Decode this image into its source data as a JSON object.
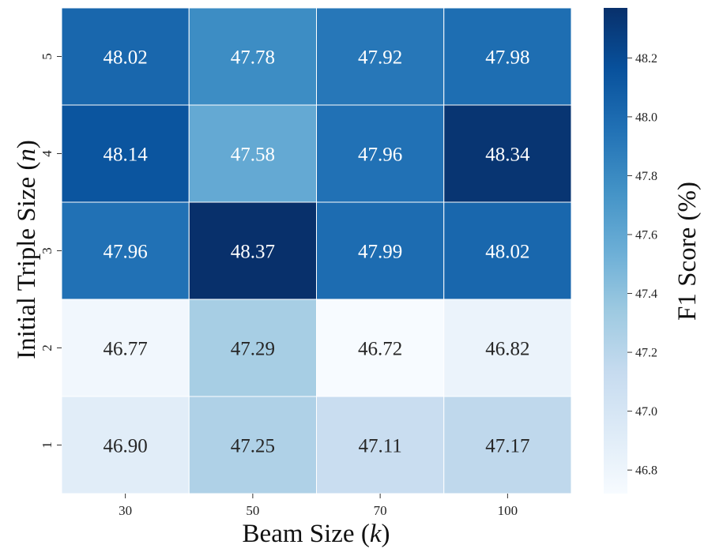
{
  "chart_data": {
    "type": "heatmap",
    "x_categories": [
      "30",
      "50",
      "70",
      "100"
    ],
    "y_categories": [
      "5",
      "4",
      "3",
      "2",
      "1"
    ],
    "values": [
      [
        48.02,
        47.78,
        47.92,
        47.98
      ],
      [
        48.14,
        47.58,
        47.96,
        48.34
      ],
      [
        47.96,
        48.37,
        47.99,
        48.02
      ],
      [
        46.77,
        47.29,
        46.72,
        46.82
      ],
      [
        46.9,
        47.25,
        47.11,
        47.17
      ]
    ],
    "value_labels": [
      [
        "48.02",
        "47.78",
        "47.92",
        "47.98"
      ],
      [
        "48.14",
        "47.58",
        "47.96",
        "48.34"
      ],
      [
        "47.96",
        "48.37",
        "47.99",
        "48.02"
      ],
      [
        "46.77",
        "47.29",
        "46.72",
        "46.82"
      ],
      [
        "46.90",
        "47.25",
        "47.11",
        "47.17"
      ]
    ],
    "xlabel": {
      "prefix": "Beam Size (",
      "var": "k",
      "suffix": ")"
    },
    "ylabel": {
      "prefix": "Initial Triple Size (",
      "var": "n",
      "suffix": ")"
    },
    "colorbar": {
      "label": "F1 Score (%)",
      "range": [
        46.72,
        48.37
      ],
      "ticks": [
        46.8,
        47.0,
        47.2,
        47.4,
        47.6,
        47.8,
        48.0,
        48.2
      ],
      "tick_labels": [
        "46.8",
        "47.0",
        "47.2",
        "47.4",
        "47.6",
        "47.8",
        "48.0",
        "48.2"
      ]
    },
    "colormap": "Blues",
    "colormap_stops": [
      "#f7fbff",
      "#deebf7",
      "#c6dbef",
      "#9ecae1",
      "#6baed6",
      "#4292c6",
      "#2171b5",
      "#08519c",
      "#08306b"
    ]
  }
}
